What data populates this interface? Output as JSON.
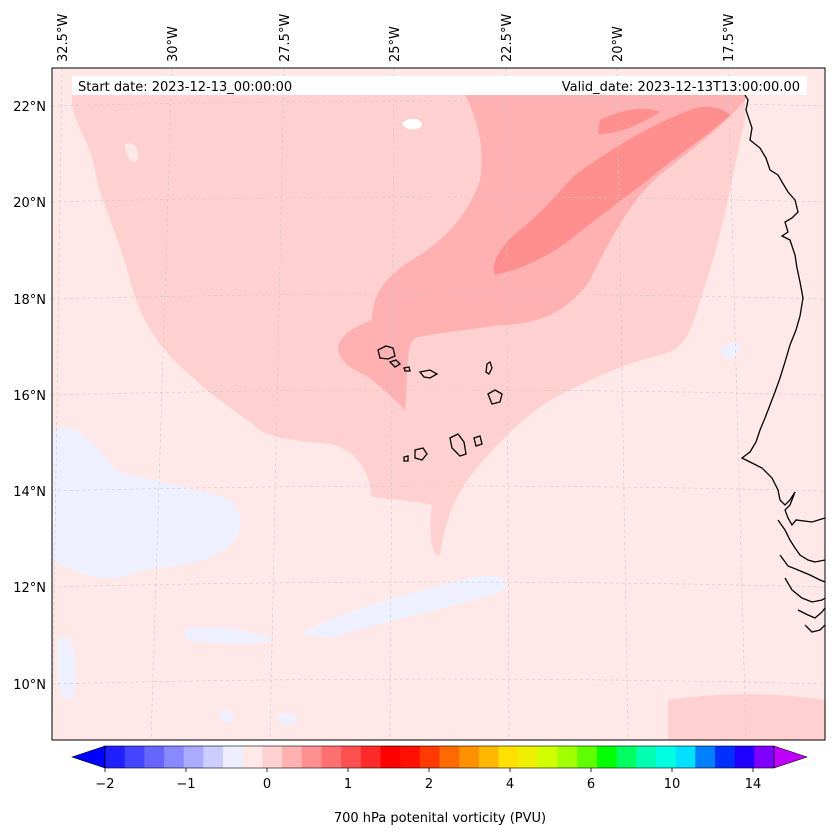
{
  "map": {
    "start_date_label": "Start date: 2023-12-13_00:00:00",
    "valid_date_label": "Valid_date: 2023-12-13T13:00:00.00",
    "lon_labels": [
      "32.5°W",
      "30°W",
      "27.5°W",
      "25°W",
      "22.5°W",
      "20°W",
      "17.5°W"
    ],
    "lat_labels": [
      "22°N",
      "20°N",
      "18°N",
      "16°N",
      "14°N",
      "12°N",
      "10°N"
    ],
    "colors": {
      "pv_0_0_25": "#ffe8e8",
      "pv_0_25_0_5": "#ffd0d0",
      "pv_0_5_0_75": "#ffb0b0",
      "pv_0_75_1": "#ff8e8e",
      "pv_neg_0_25": "#eef0ff",
      "coastline": "#000000"
    }
  },
  "colorbar": {
    "title": "700 hPa potenital vorticity (PVU)",
    "tick_labels": [
      "−2",
      "−1",
      "0",
      "1",
      "2",
      "4",
      "6",
      "10",
      "14"
    ],
    "colors": [
      "#0000ff",
      "#2020ff",
      "#4444ff",
      "#6666ff",
      "#8888ff",
      "#aaaaff",
      "#ccccff",
      "#eeeeff",
      "#ffe8e8",
      "#ffd0d0",
      "#ffb0b0",
      "#ff9090",
      "#ff7070",
      "#ff5050",
      "#ff2a2a",
      "#ff0000",
      "#ff1000",
      "#ff3a00",
      "#ff6a00",
      "#ff9000",
      "#ffb800",
      "#ffe000",
      "#eef000",
      "#d0ff00",
      "#a0ff00",
      "#60ff00",
      "#00ff00",
      "#00ff60",
      "#00ffb0",
      "#00ffe0",
      "#00e0ff",
      "#0080ff",
      "#0030ff",
      "#2000ff",
      "#8000ff",
      "#c000ff"
    ]
  }
}
